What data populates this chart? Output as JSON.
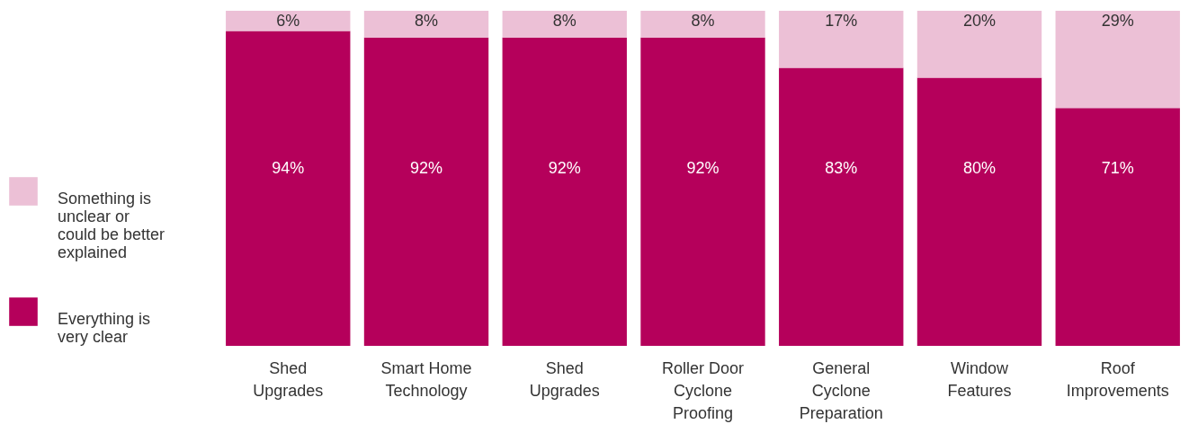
{
  "chart_data": {
    "type": "bar",
    "stacked": true,
    "legend": "left",
    "categories": [
      "Shed Upgrades",
      "Smart Home Technology",
      "Shed Upgrades",
      "Roller Door Cyclone Proofing",
      "General Cyclone Preparation",
      "Window Features",
      "Roof Improvements"
    ],
    "series": [
      {
        "name": "Everything is very clear",
        "color": "#b5005b",
        "values": [
          94,
          92,
          92,
          92,
          83,
          80,
          71
        ],
        "value_labels": [
          "94%",
          "92%",
          "92%",
          "92%",
          "83%",
          "80%",
          "71%"
        ]
      },
      {
        "name": "Something is unclear or could be better explained",
        "color": "#ecc0d6",
        "values": [
          6,
          8,
          8,
          8,
          17,
          20,
          29
        ],
        "value_labels": [
          "6%",
          "8%",
          "8%",
          "8%",
          "17%",
          "20%",
          "29%"
        ]
      }
    ]
  }
}
